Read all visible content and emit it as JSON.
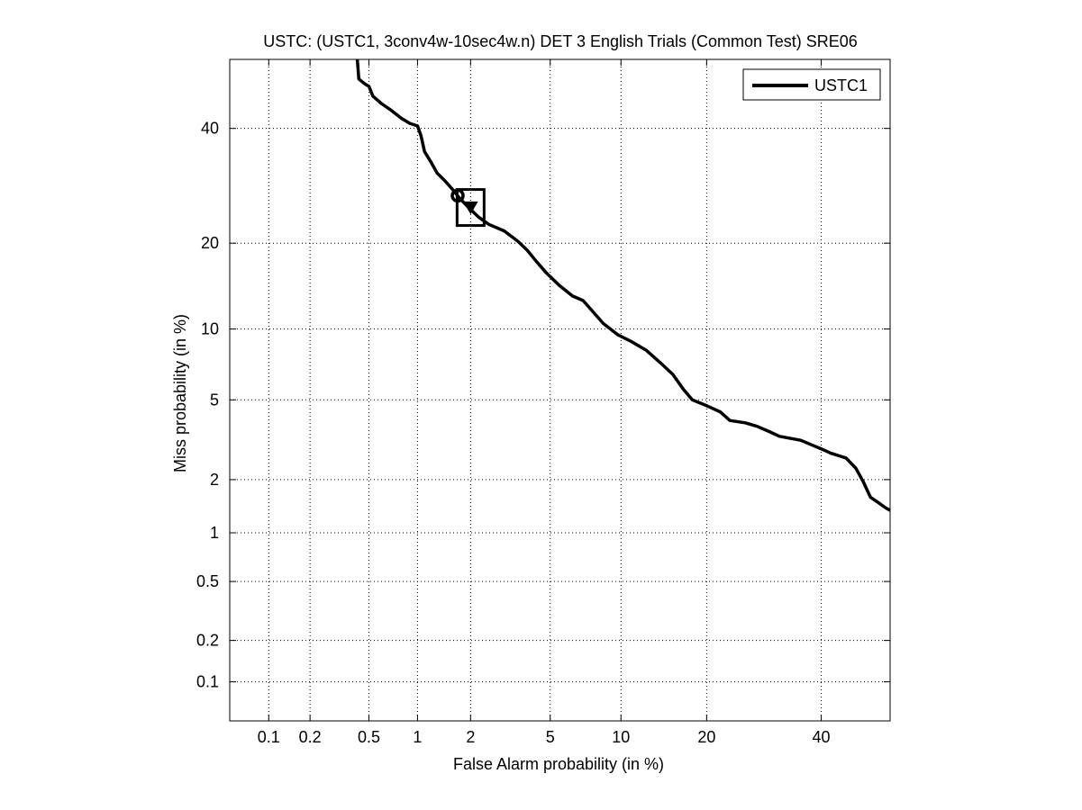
{
  "chart_data": {
    "type": "line",
    "title": "USTC: (USTC1, 3conv4w-10sec4w.n) DET 3 English Trials (Common Test) SRE06",
    "xlabel": "False Alarm probability (in %)",
    "ylabel": "Miss probability (in %)",
    "x_scale": "normal-deviate (probit)",
    "y_scale": "normal-deviate (probit)",
    "xlim": [
      0.05,
      54
    ],
    "ylim": [
      0.05,
      54
    ],
    "grid": true,
    "legend_position": "top-right",
    "x_ticks": [
      {
        "value": 0.1,
        "label": "0.1"
      },
      {
        "value": 0.2,
        "label": "0.2"
      },
      {
        "value": 0.5,
        "label": "0.5"
      },
      {
        "value": 1,
        "label": "1"
      },
      {
        "value": 2,
        "label": "2"
      },
      {
        "value": 5,
        "label": "5"
      },
      {
        "value": 10,
        "label": "10"
      },
      {
        "value": 20,
        "label": "20"
      },
      {
        "value": 40,
        "label": "40"
      }
    ],
    "y_ticks": [
      {
        "value": 0.1,
        "label": "0.1"
      },
      {
        "value": 0.2,
        "label": "0.2"
      },
      {
        "value": 0.5,
        "label": "0.5"
      },
      {
        "value": 1,
        "label": "1"
      },
      {
        "value": 2,
        "label": "2"
      },
      {
        "value": 5,
        "label": "5"
      },
      {
        "value": 10,
        "label": "10"
      },
      {
        "value": 20,
        "label": "20"
      },
      {
        "value": 40,
        "label": "40"
      }
    ],
    "series": [
      {
        "name": "USTC1",
        "color": "#000000",
        "points": [
          [
            0.42,
            54.0
          ],
          [
            0.43,
            50.0
          ],
          [
            0.47,
            49.0
          ],
          [
            0.5,
            48.5
          ],
          [
            0.53,
            46.5
          ],
          [
            0.6,
            45.0
          ],
          [
            0.7,
            43.5
          ],
          [
            0.8,
            42.0
          ],
          [
            0.9,
            41.0
          ],
          [
            1.0,
            40.5
          ],
          [
            1.05,
            38.5
          ],
          [
            1.1,
            35.5
          ],
          [
            1.2,
            33.5
          ],
          [
            1.3,
            31.5
          ],
          [
            1.45,
            30.0
          ],
          [
            1.6,
            28.5
          ],
          [
            1.75,
            27.0
          ],
          [
            1.95,
            25.5
          ],
          [
            2.2,
            24.0
          ],
          [
            2.5,
            22.8
          ],
          [
            3.0,
            21.8
          ],
          [
            3.5,
            20.3
          ],
          [
            3.9,
            19.0
          ],
          [
            4.3,
            17.5
          ],
          [
            4.8,
            16.0
          ],
          [
            5.5,
            14.5
          ],
          [
            6.3,
            13.3
          ],
          [
            7.0,
            12.8
          ],
          [
            7.8,
            11.5
          ],
          [
            8.5,
            10.5
          ],
          [
            9.7,
            9.5
          ],
          [
            11.0,
            8.9
          ],
          [
            12.5,
            8.2
          ],
          [
            14.0,
            7.3
          ],
          [
            15.5,
            6.5
          ],
          [
            16.8,
            5.6
          ],
          [
            18.0,
            5.0
          ],
          [
            20.0,
            4.7
          ],
          [
            22.0,
            4.4
          ],
          [
            23.5,
            4.0
          ],
          [
            26.0,
            3.9
          ],
          [
            28.0,
            3.75
          ],
          [
            30.0,
            3.55
          ],
          [
            32.0,
            3.35
          ],
          [
            36.0,
            3.2
          ],
          [
            40.0,
            2.9
          ],
          [
            42.0,
            2.75
          ],
          [
            45.0,
            2.6
          ],
          [
            47.0,
            2.3
          ],
          [
            48.5,
            1.95
          ],
          [
            50.0,
            1.6
          ],
          [
            51.5,
            1.5
          ],
          [
            53.0,
            1.4
          ],
          [
            54.0,
            1.35
          ]
        ]
      }
    ],
    "markers": [
      {
        "type": "circle",
        "x": 1.7,
        "y": 27.5
      },
      {
        "type": "triangle-down",
        "x": 2.0,
        "y": 25.5
      },
      {
        "type": "square",
        "x": 2.0,
        "y": 25.5
      }
    ]
  }
}
